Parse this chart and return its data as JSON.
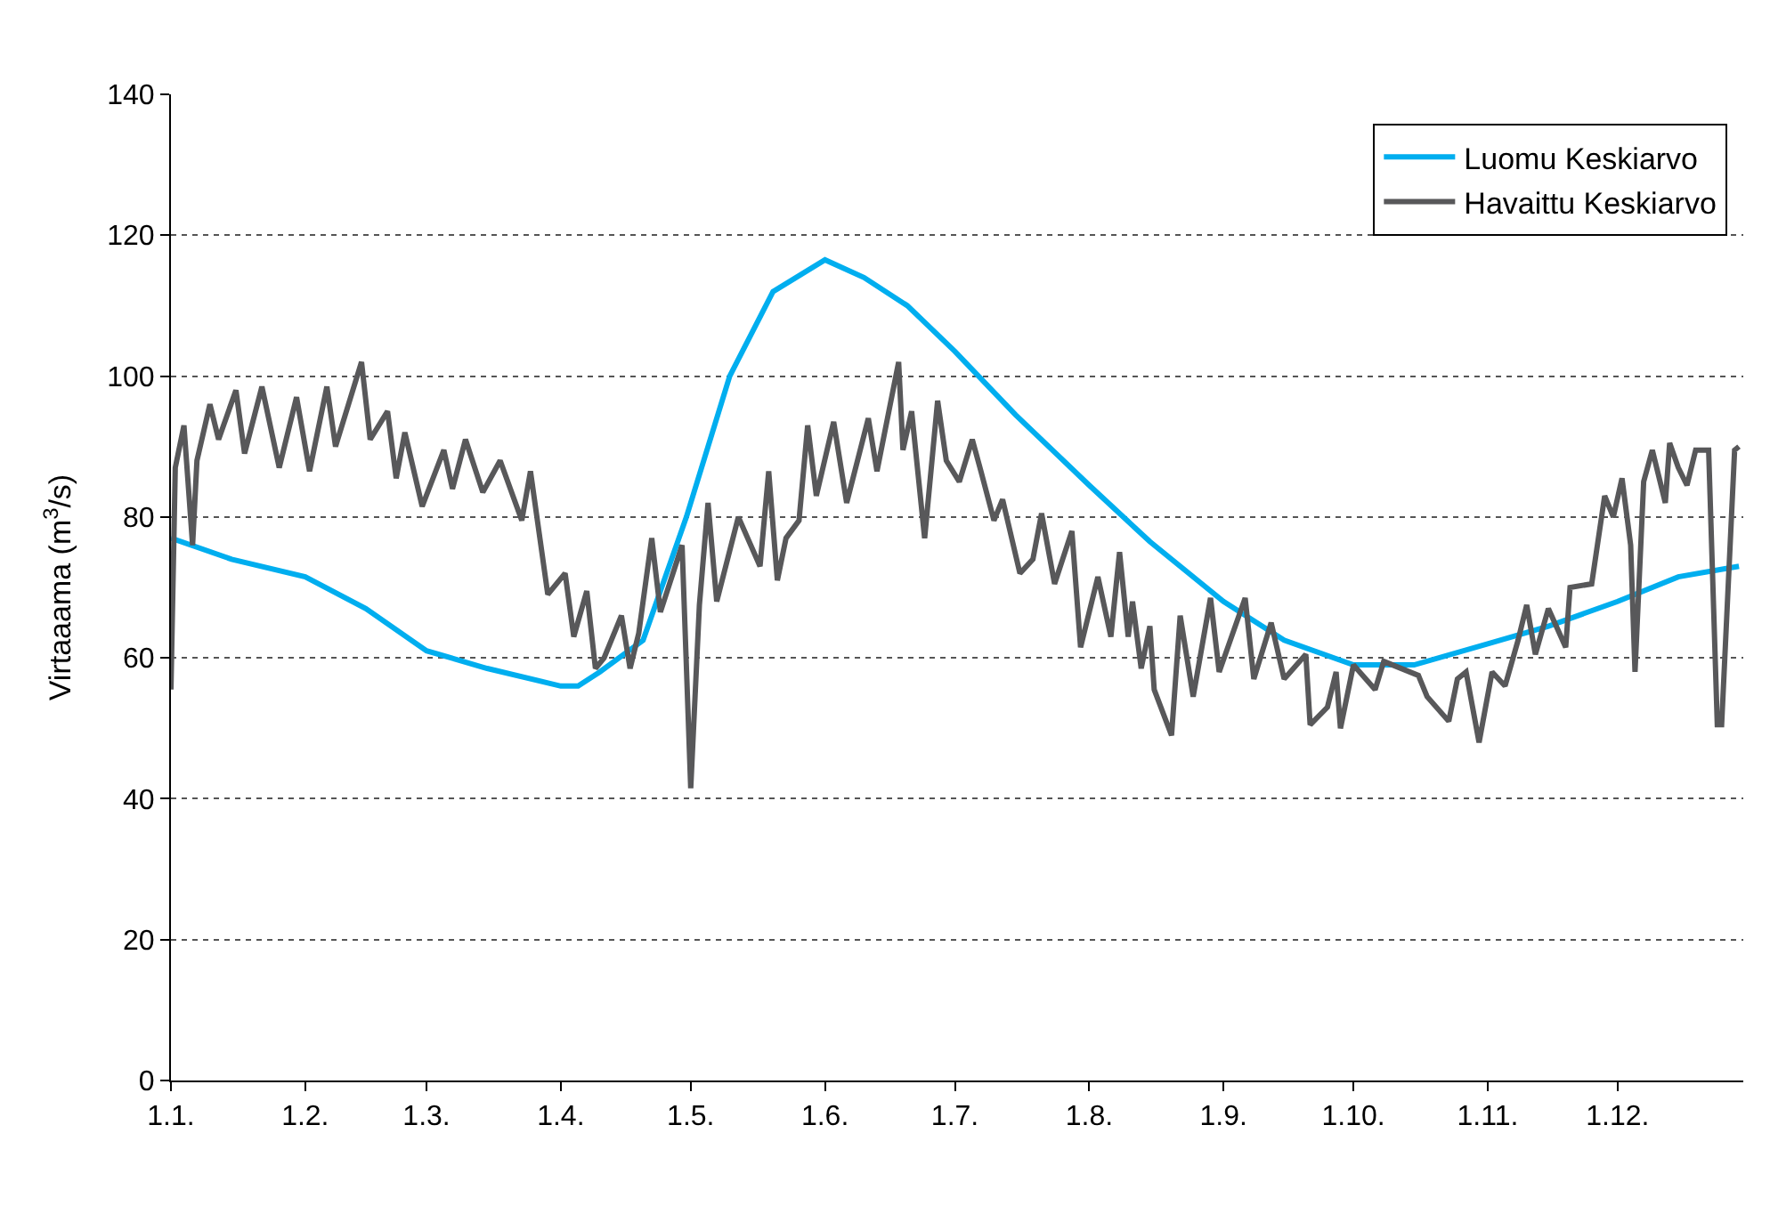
{
  "chart_data": {
    "type": "line",
    "ylabel": "Virtaaama (m$^{3}$/s)",
    "xlim": [
      "--01-01",
      "--12-30"
    ],
    "xticks": [
      {
        "value": "--01-01",
        "label": "1.1."
      },
      {
        "value": "--02-01",
        "label": "1.2."
      },
      {
        "value": "--03-01",
        "label": "1.3."
      },
      {
        "value": "--04-01",
        "label": "1.4."
      },
      {
        "value": "--05-01",
        "label": "1.5."
      },
      {
        "value": "--06-01",
        "label": "1.6."
      },
      {
        "value": "--07-01",
        "label": "1.7."
      },
      {
        "value": "--08-01",
        "label": "1.8."
      },
      {
        "value": "--09-01",
        "label": "1.9."
      },
      {
        "value": "--10-01",
        "label": "1.10."
      },
      {
        "value": "--11-01",
        "label": "1.11."
      },
      {
        "value": "--12-01",
        "label": "1.12."
      }
    ],
    "ylim": [
      0,
      140
    ],
    "yticks": [
      0,
      20,
      40,
      60,
      80,
      100,
      120,
      140
    ],
    "grid": "y",
    "legend": "top right",
    "marker": "none",
    "line_style": "solid",
    "series": [
      {
        "name": "Luomu Keskiarvo",
        "color": "#00aeef",
        "x": [
          "--01-01",
          "--01-15",
          "--02-01",
          "--02-15",
          "--03-01",
          "--03-15",
          "--04-01",
          "--04-05",
          "--04-10",
          "--04-20",
          "--04-30",
          "--05-10",
          "--05-20",
          "--06-01",
          "--06-10",
          "--06-20",
          "--07-01",
          "--07-15",
          "--08-01",
          "--08-15",
          "--09-01",
          "--09-15",
          "--10-01",
          "--10-15",
          "--11-01",
          "--11-15",
          "--12-01",
          "--12-15",
          "--12-29"
        ],
        "values": [
          77,
          74,
          71.5,
          67,
          61,
          58.5,
          56,
          56,
          58,
          62.5,
          80,
          100,
          112,
          116.5,
          114,
          110,
          103.5,
          94.5,
          84.5,
          76.5,
          68,
          62.5,
          59,
          59,
          62,
          64.5,
          68,
          71.5,
          73
        ]
      },
      {
        "name": "Havaittu Keskiarvo",
        "color": "#58585a",
        "x": [
          "--01-01",
          "--01-02",
          "--01-04",
          "--01-06",
          "--01-07",
          "--01-10",
          "--01-12",
          "--01-16",
          "--01-18",
          "--01-22",
          "--01-26",
          "--01-30",
          "--02-02",
          "--02-06",
          "--02-08",
          "--02-14",
          "--02-16",
          "--02-20",
          "--02-22",
          "--02-24",
          "--02-28",
          "--03-05",
          "--03-07",
          "--03-10",
          "--03-14",
          "--03-18",
          "--03-23",
          "--03-25",
          "--03-29",
          "--04-02",
          "--04-04",
          "--04-07",
          "--04-09",
          "--04-11",
          "--04-15",
          "--04-17",
          "--04-19",
          "--04-22",
          "--04-24",
          "--04-29",
          "--05-01",
          "--05-03",
          "--05-05",
          "--05-07",
          "--05-12",
          "--05-17",
          "--05-19",
          "--05-21",
          "--05-23",
          "--05-26",
          "--05-28",
          "--05-30",
          "--06-03",
          "--06-06",
          "--06-11",
          "--06-13",
          "--06-18",
          "--06-19",
          "--06-21",
          "--06-24",
          "--06-27",
          "--06-29",
          "--07-02",
          "--07-05",
          "--07-07",
          "--07-10",
          "--07-12",
          "--07-16",
          "--07-19",
          "--07-21",
          "--07-24",
          "--07-28",
          "--07-30",
          "--08-03",
          "--08-06",
          "--08-08",
          "--08-10",
          "--08-11",
          "--08-13",
          "--08-15",
          "--08-16",
          "--08-20",
          "--08-22",
          "--08-25",
          "--08-29",
          "--08-31",
          "--09-06",
          "--09-08",
          "--09-12",
          "--09-15",
          "--09-20",
          "--09-21",
          "--09-25",
          "--09-27",
          "--09-28",
          "--10-01",
          "--10-06",
          "--10-08",
          "--10-16",
          "--10-18",
          "--10-23",
          "--10-25",
          "--10-27",
          "--10-30",
          "--11-02",
          "--11-05",
          "--11-08",
          "--11-10",
          "--11-12",
          "--11-15",
          "--11-19",
          "--11-20",
          "--11-25",
          "--11-28",
          "--11-30",
          "--12-02",
          "--12-04",
          "--12-05",
          "--12-07",
          "--12-09",
          "--12-12",
          "--12-13",
          "--12-15",
          "--12-17",
          "--12-19",
          "--12-22",
          "--12-24",
          "--12-25",
          "--12-28",
          "--12-29"
        ],
        "values": [
          55.5,
          87,
          93,
          76,
          88,
          96,
          91,
          98,
          89,
          98.5,
          87,
          97,
          86.5,
          98.5,
          90,
          102,
          91,
          95,
          85.5,
          92,
          81.5,
          89.5,
          84,
          91,
          83.5,
          88,
          79.5,
          86.5,
          69,
          72,
          63,
          69.5,
          58.5,
          60,
          66,
          58.5,
          63.5,
          77,
          66.5,
          76,
          41.5,
          67.5,
          82,
          68,
          80,
          73,
          86.5,
          71,
          77,
          79.5,
          93,
          83,
          93.5,
          82,
          94,
          86.5,
          102,
          89.5,
          95,
          77,
          96.5,
          88,
          85,
          91,
          86.5,
          79.5,
          82.5,
          72,
          74,
          80.5,
          70.5,
          78,
          61.5,
          71.5,
          63,
          75,
          63,
          68,
          58.5,
          64.5,
          55.5,
          49,
          66,
          54.5,
          68.5,
          58,
          68.5,
          57,
          65,
          57,
          60.5,
          50.5,
          53,
          58,
          50,
          59,
          55.5,
          59.5,
          57.5,
          54.5,
          51,
          57,
          58,
          48,
          58,
          56,
          62.5,
          67.5,
          60.5,
          67,
          61.5,
          70,
          70.5,
          83,
          80,
          85.5,
          76,
          58,
          85,
          89.5,
          82,
          90.5,
          87,
          84.5,
          89.5,
          89.5,
          50.5,
          50.5,
          89.5,
          90
        ]
      }
    ]
  }
}
